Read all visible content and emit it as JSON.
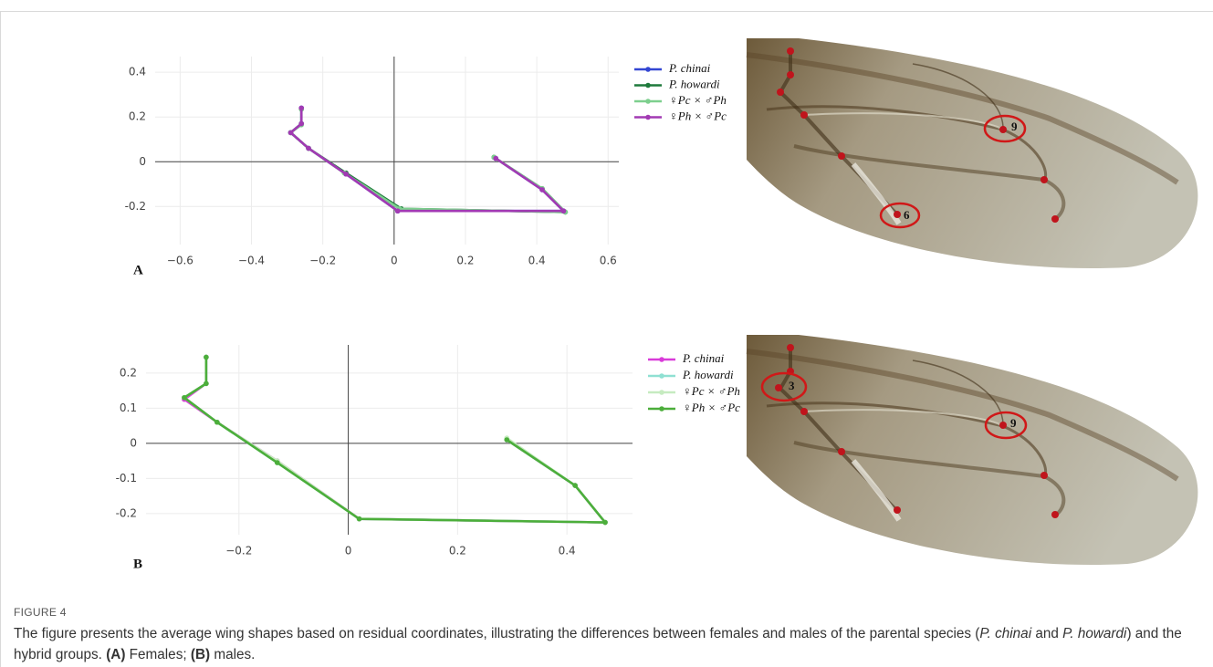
{
  "chart_data": [
    {
      "type": "line",
      "panel": "A",
      "xlim": [
        -0.67,
        0.63
      ],
      "ylim": [
        -0.37,
        0.47
      ],
      "xticks": [
        {
          "value": -0.6,
          "label": "−0.6"
        },
        {
          "value": -0.4,
          "label": "−0.4"
        },
        {
          "value": -0.2,
          "label": "−0.2"
        },
        0,
        0.2,
        0.4,
        0.6
      ],
      "yticks": [
        {
          "value": -0.2,
          "label": "-0.2"
        },
        0,
        0.2,
        0.4
      ],
      "grid": true,
      "zero_lines": true,
      "series": [
        {
          "name": "P. chinai",
          "color": "#3346d3",
          "x": [
            -0.26,
            -0.26,
            -0.29,
            -0.24,
            -0.135,
            0.01,
            0.475,
            0.415,
            0.285
          ],
          "values": [
            0.24,
            0.17,
            0.13,
            0.06,
            -0.055,
            -0.22,
            -0.22,
            -0.125,
            0.015
          ]
        },
        {
          "name": "P. howardi",
          "color": "#1f7a3c",
          "x": [
            -0.26,
            -0.26,
            -0.29,
            -0.24,
            -0.135,
            0.02,
            0.48,
            0.415,
            0.28
          ],
          "values": [
            0.235,
            0.17,
            0.13,
            0.06,
            -0.05,
            -0.21,
            -0.225,
            -0.12,
            0.02
          ]
        },
        {
          "name": "♀Pc × ♂Ph",
          "color": "#7dcf8e",
          "x": [
            -0.26,
            -0.26,
            -0.29,
            -0.24,
            -0.14,
            0.015,
            0.48,
            0.415,
            0.28
          ],
          "values": [
            0.235,
            0.165,
            0.13,
            0.06,
            -0.05,
            -0.21,
            -0.225,
            -0.12,
            0.02
          ]
        },
        {
          "name": "♀Ph × ♂Pc",
          "color": "#a23ab3",
          "x": [
            -0.26,
            -0.26,
            -0.29,
            -0.24,
            -0.135,
            0.01,
            0.475,
            0.415,
            0.285
          ],
          "values": [
            0.24,
            0.17,
            0.13,
            0.06,
            -0.055,
            -0.22,
            -0.22,
            -0.125,
            0.015
          ]
        }
      ]
    },
    {
      "type": "line",
      "panel": "B",
      "xlim": [
        -0.37,
        0.52
      ],
      "ylim": [
        -0.26,
        0.28
      ],
      "xticks": [
        {
          "value": -0.2,
          "label": "−0.2"
        },
        0,
        0.2,
        0.4
      ],
      "yticks": [
        {
          "value": -0.2,
          "label": "-0.2"
        },
        {
          "value": -0.1,
          "label": "-0.1"
        },
        0,
        0.1,
        0.2
      ],
      "grid": true,
      "zero_lines": true,
      "series": [
        {
          "name": "P. chinai",
          "color": "#d93bd9",
          "x": [
            -0.26,
            -0.26,
            -0.3,
            -0.24,
            -0.13,
            0.02,
            0.47,
            0.415,
            0.29
          ],
          "values": [
            0.245,
            0.17,
            0.125,
            0.06,
            -0.05,
            -0.215,
            -0.225,
            -0.12,
            0.01
          ]
        },
        {
          "name": "P. howardi",
          "color": "#8fe0d2",
          "x": [
            -0.26,
            -0.26,
            -0.3,
            -0.24,
            -0.13,
            0.02,
            0.47,
            0.415,
            0.29
          ],
          "values": [
            0.245,
            0.17,
            0.13,
            0.06,
            -0.055,
            -0.215,
            -0.225,
            -0.12,
            0.01
          ]
        },
        {
          "name": "♀Pc × ♂Ph",
          "color": "#c6ebc0",
          "x": [
            -0.26,
            -0.26,
            -0.3,
            -0.24,
            -0.13,
            0.02,
            0.47,
            0.415,
            0.29
          ],
          "values": [
            0.245,
            0.17,
            0.13,
            0.06,
            -0.05,
            -0.215,
            -0.225,
            -0.12,
            0.015
          ]
        },
        {
          "name": "♀Ph × ♂Pc",
          "color": "#4cae3b",
          "x": [
            -0.26,
            -0.26,
            -0.3,
            -0.24,
            -0.13,
            0.02,
            0.47,
            0.415,
            0.29
          ],
          "values": [
            0.245,
            0.17,
            0.13,
            0.06,
            -0.055,
            -0.215,
            -0.225,
            -0.12,
            0.01
          ]
        }
      ]
    }
  ],
  "wing_images": [
    {
      "labels": [
        "9",
        "6"
      ]
    },
    {
      "labels": [
        "3",
        "9"
      ]
    }
  ],
  "figure": {
    "label": "FIGURE 4",
    "caption": [
      "The figure presents the average wing shapes based on residual coordinates, illustrating the differences between females and males of the parental species (",
      "P. chinai",
      " and ",
      "P. howardi",
      ") and the hybrid groups. ",
      "(A)",
      " Females; ",
      "(B)",
      " males."
    ]
  }
}
